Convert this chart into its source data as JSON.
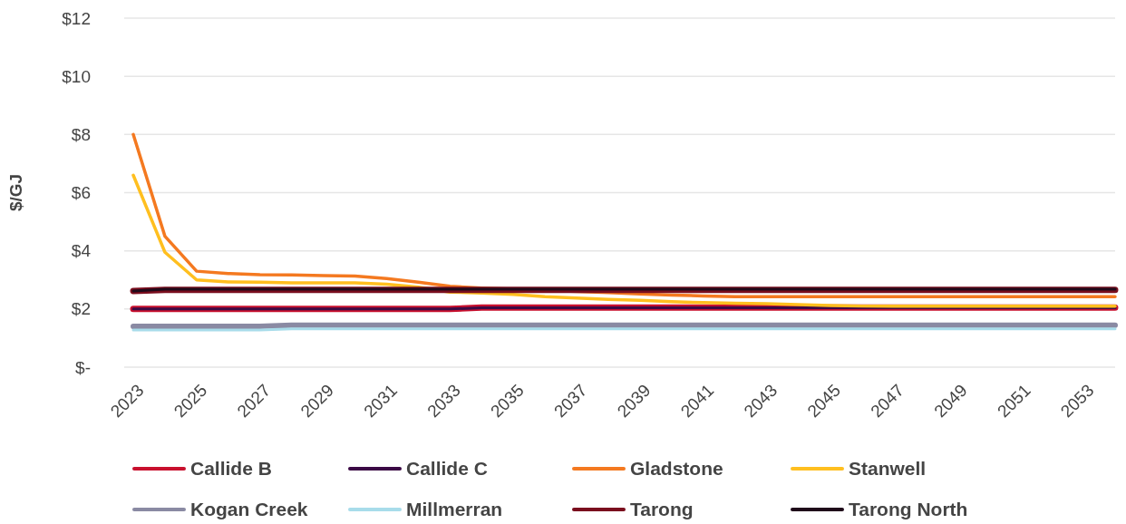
{
  "chart_data": {
    "type": "line",
    "ylabel": "$/GJ",
    "categories": [
      "2023",
      null,
      "2025",
      null,
      "2027",
      null,
      "2029",
      null,
      "2031",
      null,
      "2033",
      null,
      "2035",
      null,
      "2037",
      null,
      "2039",
      null,
      "2041",
      null,
      "2043",
      null,
      "2045",
      null,
      "2047",
      null,
      "2049",
      null,
      "2051",
      null,
      "2053",
      null
    ],
    "ylim": [
      0,
      12
    ],
    "yticks": [
      {
        "value": 0,
        "label": "$-"
      },
      {
        "value": 2,
        "label": "$2"
      },
      {
        "value": 4,
        "label": "$4"
      },
      {
        "value": 6,
        "label": "$6"
      },
      {
        "value": 8,
        "label": "$8"
      },
      {
        "value": 10,
        "label": "$10"
      },
      {
        "value": 12,
        "label": "$12"
      }
    ],
    "grid": "y",
    "legend": "bottom",
    "series": [
      {
        "name": "Callide B",
        "color": "#c8102e",
        "values": [
          2.0,
          2.0,
          2.0,
          2.0,
          2.0,
          2.0,
          2.0,
          2.0,
          2.0,
          2.0,
          2.0,
          2.05,
          2.05,
          2.05,
          2.05,
          2.05,
          2.05,
          2.05,
          2.05,
          2.05,
          2.05,
          2.05,
          2.05,
          2.05,
          2.05,
          2.05,
          2.05,
          2.05,
          2.05,
          2.05,
          2.05,
          2.05
        ]
      },
      {
        "name": "Callide C",
        "color": "#3b0a45",
        "values": [
          2.0,
          2.0,
          2.0,
          2.0,
          2.0,
          2.0,
          2.0,
          2.0,
          2.0,
          2.0,
          2.0,
          2.04,
          2.04,
          2.04,
          2.04,
          2.04,
          2.04,
          2.04,
          2.04,
          2.04,
          2.04,
          2.04,
          2.04,
          2.04,
          2.04,
          2.04,
          2.04,
          2.04,
          2.04,
          2.04,
          2.04,
          2.04
        ]
      },
      {
        "name": "Gladstone",
        "color": "#f47920",
        "values": [
          8.0,
          4.5,
          3.3,
          3.22,
          3.18,
          3.17,
          3.15,
          3.13,
          3.05,
          2.92,
          2.78,
          2.72,
          2.68,
          2.64,
          2.6,
          2.56,
          2.52,
          2.48,
          2.45,
          2.42,
          2.42,
          2.42,
          2.42,
          2.42,
          2.42,
          2.42,
          2.42,
          2.42,
          2.42,
          2.42,
          2.42,
          2.42
        ]
      },
      {
        "name": "Stanwell",
        "color": "#ffbf1f",
        "values": [
          6.6,
          3.95,
          3.0,
          2.93,
          2.92,
          2.9,
          2.9,
          2.9,
          2.85,
          2.75,
          2.58,
          2.55,
          2.5,
          2.42,
          2.38,
          2.33,
          2.3,
          2.25,
          2.22,
          2.2,
          2.18,
          2.15,
          2.12,
          2.1,
          2.1,
          2.1,
          2.1,
          2.1,
          2.1,
          2.1,
          2.1,
          2.1
        ]
      },
      {
        "name": "Kogan Creek",
        "color": "#8a8aa3",
        "values": [
          1.4,
          1.4,
          1.4,
          1.4,
          1.4,
          1.44,
          1.44,
          1.44,
          1.44,
          1.44,
          1.44,
          1.44,
          1.44,
          1.44,
          1.44,
          1.44,
          1.44,
          1.44,
          1.44,
          1.44,
          1.44,
          1.44,
          1.44,
          1.44,
          1.44,
          1.44,
          1.44,
          1.44,
          1.44,
          1.44,
          1.44,
          1.44
        ]
      },
      {
        "name": "Millmerran",
        "color": "#a8dcea",
        "values": [
          1.28,
          1.28,
          1.28,
          1.28,
          1.28,
          1.32,
          1.32,
          1.32,
          1.32,
          1.32,
          1.32,
          1.32,
          1.32,
          1.32,
          1.32,
          1.32,
          1.32,
          1.32,
          1.32,
          1.32,
          1.32,
          1.32,
          1.32,
          1.32,
          1.32,
          1.32,
          1.32,
          1.32,
          1.32,
          1.32,
          1.32,
          1.32
        ]
      },
      {
        "name": "Tarong",
        "color": "#7a0e1e",
        "values": [
          2.62,
          2.66,
          2.66,
          2.66,
          2.66,
          2.66,
          2.66,
          2.66,
          2.66,
          2.66,
          2.66,
          2.66,
          2.66,
          2.66,
          2.66,
          2.66,
          2.66,
          2.66,
          2.66,
          2.66,
          2.66,
          2.66,
          2.66,
          2.66,
          2.66,
          2.66,
          2.66,
          2.66,
          2.66,
          2.66,
          2.66,
          2.66
        ]
      },
      {
        "name": "Tarong North",
        "color": "#1f0a1a",
        "values": [
          2.62,
          2.68,
          2.68,
          2.68,
          2.68,
          2.68,
          2.68,
          2.68,
          2.68,
          2.68,
          2.68,
          2.68,
          2.68,
          2.68,
          2.68,
          2.68,
          2.68,
          2.68,
          2.68,
          2.68,
          2.68,
          2.68,
          2.68,
          2.68,
          2.68,
          2.68,
          2.68,
          2.68,
          2.68,
          2.68,
          2.68,
          2.68
        ]
      }
    ]
  }
}
